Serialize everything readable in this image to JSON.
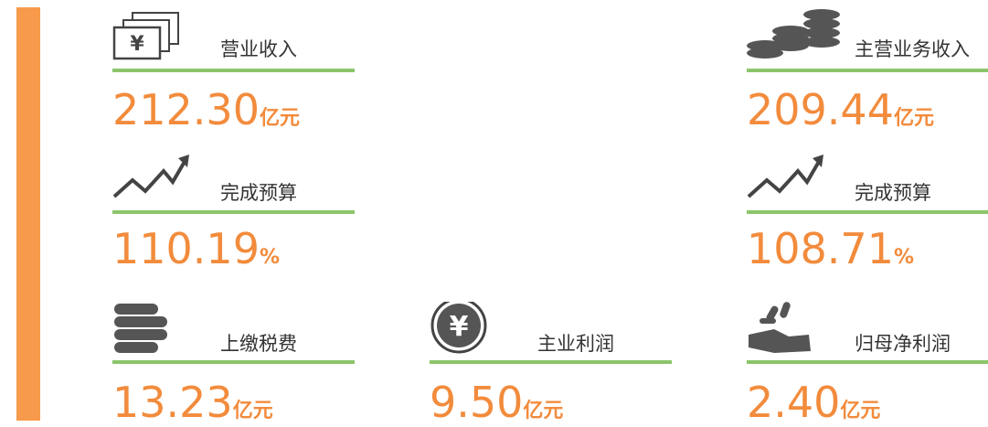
{
  "cards": [
    {
      "label": "营业收入",
      "value": "212.30",
      "unit": "亿元"
    },
    {
      "label": "主营业务收入",
      "value": "209.44",
      "unit": "亿元"
    },
    {
      "label": "完成预算",
      "value": "110.19",
      "unit": "%"
    },
    {
      "label": "完成预算",
      "value": "108.71",
      "unit": "%"
    },
    {
      "label": "上缴税费",
      "value": "13.23",
      "unit": "亿元"
    },
    {
      "label": "主业利润",
      "value": "9.50",
      "unit": "亿元"
    },
    {
      "label": "归母净利润",
      "value": "2.40",
      "unit": "亿元"
    }
  ]
}
